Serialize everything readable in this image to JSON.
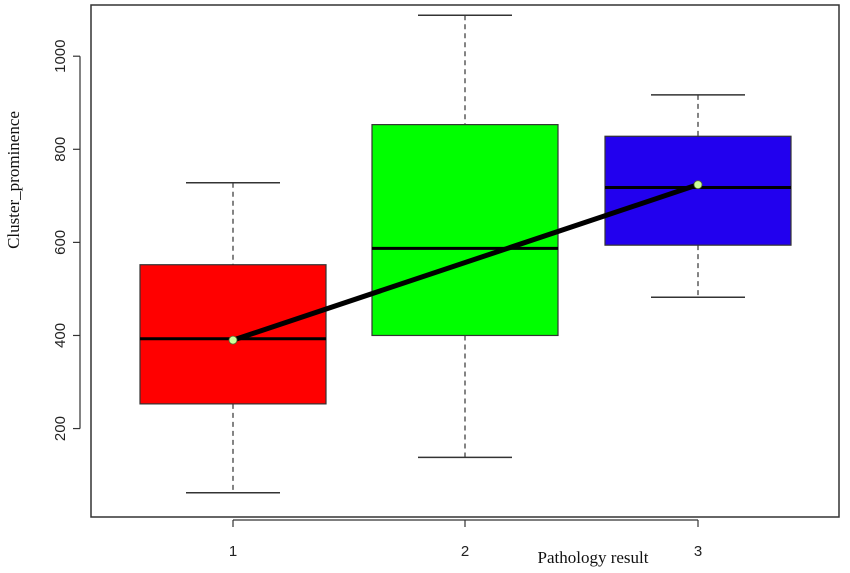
{
  "chart_data": {
    "type": "box",
    "xlabel": "Pathology result",
    "ylabel": "Cluster_prominence",
    "ylim": [
      10,
      1110
    ],
    "yticks": [
      200,
      400,
      600,
      800,
      1000
    ],
    "grid": false,
    "categories": [
      "1",
      "2",
      "3"
    ],
    "boxes": [
      {
        "category": "1",
        "whisker_low": 62,
        "q1": 253,
        "median": 393,
        "q3": 552,
        "whisker_high": 728,
        "color": "#ff0000"
      },
      {
        "category": "2",
        "whisker_low": 138,
        "q1": 400,
        "median": 587,
        "q3": 853,
        "whisker_high": 1088,
        "color": "#00ff00"
      },
      {
        "category": "3",
        "whisker_low": 482,
        "q1": 594,
        "median": 718,
        "q3": 828,
        "whisker_high": 917,
        "color": "#2200ee"
      }
    ],
    "mean_line": {
      "values": [
        390,
        null,
        724
      ],
      "line_color": "#000000",
      "marker_color": "#ccff99"
    }
  }
}
